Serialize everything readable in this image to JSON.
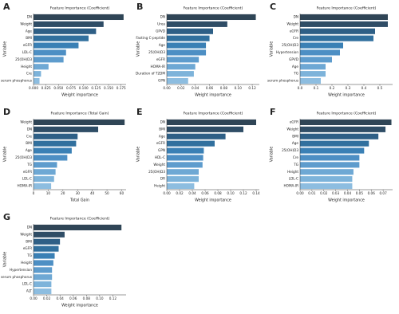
{
  "chart_data": [
    {
      "type": "barh",
      "panel": "A",
      "title": "Feature Importance (Coefficient)",
      "x_label": "Weight importance",
      "y_label": "Variable",
      "categories": [
        "DN",
        "Weight",
        "Age",
        "BMI",
        "eGFR",
        "LDL-C",
        "25(OH)D3",
        "Height",
        "Cre",
        "serum phosphorus"
      ],
      "values": [
        0.18,
        0.14,
        0.125,
        0.11,
        0.09,
        0.065,
        0.06,
        0.03,
        0.015,
        0.012
      ],
      "xlim": [
        0,
        0.185
      ],
      "xticks": [
        {
          "value": 0,
          "label": "0.000"
        },
        {
          "value": 0.025,
          "label": "0.025"
        },
        {
          "value": 0.05,
          "label": "0.050"
        },
        {
          "value": 0.075,
          "label": "0.075"
        },
        {
          "value": 0.1,
          "label": "0.100"
        },
        {
          "value": 0.125,
          "label": "0.125"
        },
        {
          "value": 0.15,
          "label": "0.150"
        },
        {
          "value": 0.175,
          "label": "0.175"
        }
      ],
      "colors": [
        "#2f4556",
        "#2f4d66",
        "#2e5f86",
        "#31709e",
        "#3a80b5",
        "#4d8fc4",
        "#5e9ccd",
        "#6ea8d4",
        "#7db3da",
        "#8dbde0"
      ]
    },
    {
      "type": "barh",
      "panel": "B",
      "title": "Feature Importance (Coefficient)",
      "x_label": "Weight importance",
      "y_label": "Variable",
      "categories": [
        "DN",
        "Urea",
        "GPVD",
        "Fasting C-peptide",
        "Age",
        "25(OH)D3",
        "eGFR",
        "HOMA-IR",
        "Duration of T2DM",
        "GPN"
      ],
      "values": [
        0.125,
        0.085,
        0.065,
        0.06,
        0.055,
        0.055,
        0.045,
        0.04,
        0.038,
        0.03
      ],
      "xlim": [
        0,
        0.13
      ],
      "xticks": [
        {
          "value": 0,
          "label": "0.00"
        },
        {
          "value": 0.02,
          "label": "0.02"
        },
        {
          "value": 0.04,
          "label": "0.04"
        },
        {
          "value": 0.06,
          "label": "0.06"
        },
        {
          "value": 0.08,
          "label": "0.08"
        },
        {
          "value": 0.1,
          "label": "0.10"
        },
        {
          "value": 0.12,
          "label": "0.12"
        }
      ],
      "colors": [
        "#2f4556",
        "#2f4d66",
        "#2e5f86",
        "#31709e",
        "#3a80b5",
        "#4d8fc4",
        "#5e9ccd",
        "#6ea8d4",
        "#7db3da",
        "#8dbde0"
      ]
    },
    {
      "type": "barh",
      "panel": "C",
      "title": "Feature Importance (Coefficient)",
      "x_label": "Weight importance",
      "y_label": "Variable",
      "categories": [
        "DN",
        "Weight",
        "eGFR",
        "Cre",
        "25(OH)D3",
        "Hypertension",
        "GPVD",
        "Age",
        "TG",
        "serum phosphorus"
      ],
      "values": [
        0.55,
        0.55,
        0.47,
        0.46,
        0.27,
        0.25,
        0.2,
        0.16,
        0.16,
        0.13
      ],
      "xlim": [
        0,
        0.58
      ],
      "xticks": [
        {
          "value": 0,
          "label": "0.0"
        },
        0.1,
        0.2,
        0.3,
        0.4,
        0.5
      ],
      "colors": [
        "#2f4556",
        "#2f4d66",
        "#2e5f86",
        "#31709e",
        "#3a80b5",
        "#4d8fc4",
        "#5e9ccd",
        "#6ea8d4",
        "#7db3da",
        "#8dbde0"
      ]
    },
    {
      "type": "barh",
      "panel": "D",
      "title": "Feature Importance (Total Gain)",
      "x_label": "Total Gain",
      "y_label": "Variable",
      "categories": [
        "Weight",
        "DN",
        "Cre",
        "BMI",
        "Age",
        "25(OH)D3",
        "TG",
        "eGFR",
        "LDL-C",
        "HOMA-IR"
      ],
      "values": [
        62,
        44,
        30,
        29,
        26,
        23,
        16,
        15,
        14,
        12
      ],
      "xlim": [
        0,
        63
      ],
      "xticks": [
        0,
        10,
        20,
        30,
        40,
        50,
        60
      ],
      "colors": [
        "#2f4556",
        "#2f4d66",
        "#2e5f86",
        "#31709e",
        "#3a80b5",
        "#4d8fc4",
        "#5e9ccd",
        "#6ea8d4",
        "#7db3da",
        "#8dbde0"
      ]
    },
    {
      "type": "barh",
      "panel": "E",
      "title": "Feature Importance (Coefficient)",
      "x_label": "Weight importance",
      "y_label": "Variable",
      "categories": [
        "DN",
        "BMI",
        "Age",
        "eGFR",
        "GPN",
        "HDL-C",
        "Weight",
        "25(OH)D3",
        "DR",
        "Height"
      ],
      "values": [
        0.14,
        0.12,
        0.092,
        0.075,
        0.058,
        0.057,
        0.056,
        0.05,
        0.05,
        0.043
      ],
      "xlim": [
        0,
        0.145
      ],
      "xticks": [
        {
          "value": 0,
          "label": "0.00"
        },
        {
          "value": 0.02,
          "label": "0.02"
        },
        {
          "value": 0.04,
          "label": "0.04"
        },
        {
          "value": 0.06,
          "label": "0.06"
        },
        {
          "value": 0.08,
          "label": "0.08"
        },
        {
          "value": 0.1,
          "label": "0.10"
        },
        {
          "value": 0.12,
          "label": "0.12"
        },
        {
          "value": 0.14,
          "label": "0.14"
        }
      ],
      "colors": [
        "#2f4556",
        "#2f4d66",
        "#2e5f86",
        "#31709e",
        "#3a80b5",
        "#4d8fc4",
        "#5e9ccd",
        "#6ea8d4",
        "#7db3da",
        "#8dbde0"
      ]
    },
    {
      "type": "barh",
      "panel": "F",
      "title": "Feature Importance (Coefficient)",
      "x_label": "Weight importance",
      "y_label": "Variable",
      "categories": [
        "eGFR",
        "Weight",
        "BMI",
        "Age",
        "25(OH)D3",
        "Cre",
        "TG",
        "Height",
        "LDL-C",
        "HOMA-IR"
      ],
      "values": [
        0.077,
        0.072,
        0.066,
        0.058,
        0.054,
        0.05,
        0.05,
        0.045,
        0.044,
        0.044
      ],
      "xlim": [
        0,
        0.078
      ],
      "xticks": [
        {
          "value": 0,
          "label": "0.00"
        },
        {
          "value": 0.01,
          "label": "0.01"
        },
        {
          "value": 0.02,
          "label": "0.02"
        },
        {
          "value": 0.03,
          "label": "0.03"
        },
        {
          "value": 0.04,
          "label": "0.04"
        },
        {
          "value": 0.05,
          "label": "0.05"
        },
        {
          "value": 0.06,
          "label": "0.06"
        },
        {
          "value": 0.07,
          "label": "0.07"
        }
      ],
      "colors": [
        "#2f4556",
        "#2f4d66",
        "#2e5f86",
        "#31709e",
        "#3a80b5",
        "#4d8fc4",
        "#5e9ccd",
        "#6ea8d4",
        "#7db3da",
        "#8dbde0"
      ]
    },
    {
      "type": "barh",
      "panel": "G",
      "title": "Feature Importance (Coefficient)",
      "x_label": "Weight importance",
      "y_label": "Variable",
      "categories": [
        "DN",
        "Weight",
        "BMI",
        "eGFR",
        "TG",
        "Height",
        "Hypertension",
        "serum phosphorus",
        "LDL-C",
        "ALT"
      ],
      "values": [
        0.133,
        0.047,
        0.04,
        0.038,
        0.032,
        0.03,
        0.028,
        0.028,
        0.027,
        0.027
      ],
      "xlim": [
        0,
        0.14
      ],
      "xticks": [
        {
          "value": 0,
          "label": "0.00"
        },
        {
          "value": 0.02,
          "label": "0.02"
        },
        {
          "value": 0.04,
          "label": "0.04"
        },
        {
          "value": 0.06,
          "label": "0.06"
        },
        {
          "value": 0.08,
          "label": "0.08"
        },
        {
          "value": 0.1,
          "label": "0.10"
        },
        {
          "value": 0.12,
          "label": "0.12"
        }
      ],
      "colors": [
        "#2f4556",
        "#2f4d66",
        "#2e5f86",
        "#31709e",
        "#3a80b5",
        "#4d8fc4",
        "#5e9ccd",
        "#6ea8d4",
        "#7db3da",
        "#8dbde0"
      ]
    }
  ]
}
